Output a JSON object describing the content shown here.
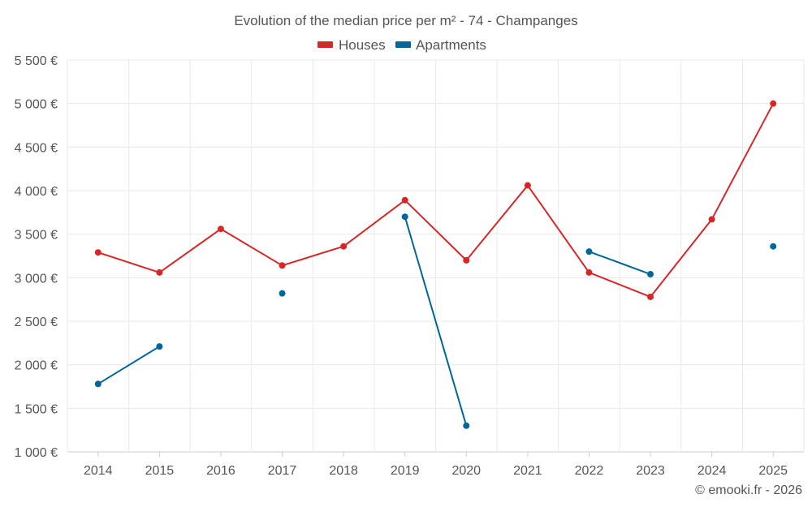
{
  "chart_data": {
    "type": "line",
    "title": "Evolution of the median price per m² - 74 - Champanges",
    "categories": [
      "2014",
      "2015",
      "2016",
      "2017",
      "2018",
      "2019",
      "2020",
      "2021",
      "2022",
      "2023",
      "2024",
      "2025"
    ],
    "series": [
      {
        "name": "Houses",
        "color": "#d62728",
        "values": [
          3290,
          3060,
          3560,
          3140,
          3360,
          3890,
          3200,
          4060,
          3060,
          2780,
          3670,
          5000
        ]
      },
      {
        "name": "Apartments",
        "color": "#006699",
        "values": [
          1780,
          2210,
          null,
          2820,
          null,
          3700,
          1300,
          null,
          3300,
          3040,
          null,
          3360
        ]
      }
    ],
    "ylim": [
      1000,
      5500
    ],
    "yticks": [
      1000,
      1500,
      2000,
      2500,
      3000,
      3500,
      4000,
      4500,
      5000,
      5500
    ],
    "ytick_labels": [
      "1 000 €",
      "1 500 €",
      "2 000 €",
      "2 500 €",
      "3 000 €",
      "3 500 €",
      "4 000 €",
      "4 500 €",
      "5 000 €",
      "5 500 €"
    ],
    "grid": true,
    "legend": "top-center"
  },
  "credit": "© emooki.fr - 2026"
}
